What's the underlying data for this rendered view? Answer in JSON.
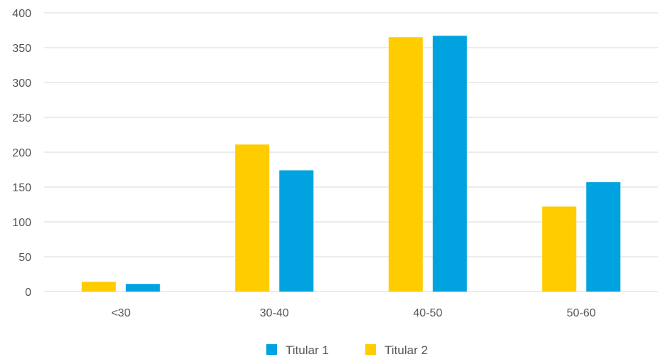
{
  "chart_data": {
    "type": "bar",
    "categories": [
      "<30",
      "30-40",
      "40-50",
      "50-60"
    ],
    "series": [
      {
        "name": "Titular 2",
        "color": "#FFCC00",
        "values": [
          14,
          211,
          365,
          122
        ]
      },
      {
        "name": "Titular 1",
        "color": "#00A3E0",
        "values": [
          11,
          174,
          367,
          157
        ]
      }
    ],
    "legend_order": [
      "Titular 1",
      "Titular 2"
    ],
    "legend_position": "bottom-center",
    "yticks": [
      0,
      50,
      100,
      150,
      200,
      250,
      300,
      350,
      400
    ],
    "ylim": [
      0,
      400
    ],
    "grid": true,
    "title": "",
    "xlabel": "",
    "ylabel": ""
  }
}
